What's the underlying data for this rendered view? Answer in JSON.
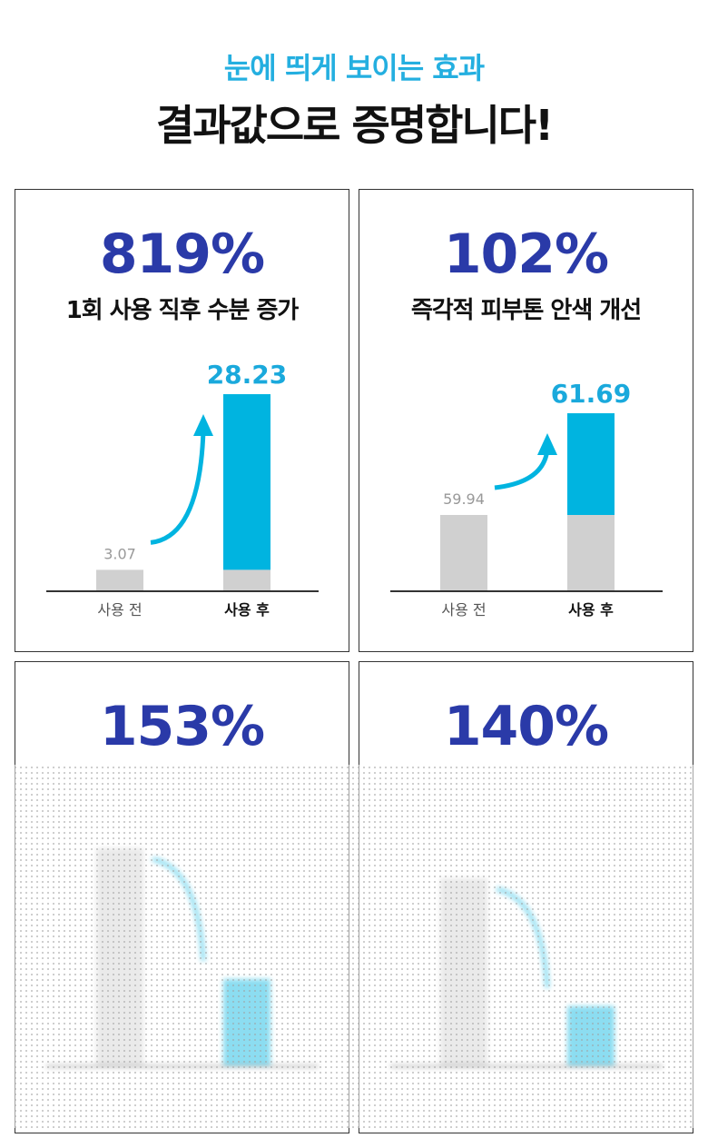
{
  "header": {
    "subtitle": "눈에 띄게 보이는 효과",
    "title": "결과값으로 증명합니다!"
  },
  "colors": {
    "accent_blue": "#2a3aa8",
    "accent_cyan": "#00b4e0",
    "bar_gray": "#d0d0d0",
    "axis": "#333333"
  },
  "chart_data": [
    {
      "type": "bar",
      "percent": "819%",
      "caption": "1회 사용 직후 수분 증가",
      "direction": "up",
      "categories": [
        "사용 전",
        "사용 후"
      ],
      "values": [
        3.07,
        28.23
      ],
      "labels": [
        "3.07",
        "28.23"
      ],
      "ylim": [
        0,
        30
      ]
    },
    {
      "type": "bar",
      "percent": "102%",
      "caption": "즉각적 피부톤 안색 개선",
      "direction": "up",
      "categories": [
        "사용 전",
        "사용 후"
      ],
      "values": [
        59.94,
        61.69
      ],
      "labels": [
        "59.94",
        "61.69"
      ],
      "ylim": [
        0,
        62
      ]
    },
    {
      "type": "bar",
      "percent": "153%",
      "caption": "",
      "direction": "down",
      "categories": [
        "",
        ""
      ],
      "values": [
        100,
        40
      ],
      "labels": [
        "",
        ""
      ],
      "ylim": [
        0,
        105
      ]
    },
    {
      "type": "bar",
      "percent": "140%",
      "caption": "",
      "direction": "down",
      "categories": [
        "",
        ""
      ],
      "values": [
        100,
        32
      ],
      "labels": [
        "",
        ""
      ],
      "ylim": [
        0,
        105
      ]
    }
  ]
}
